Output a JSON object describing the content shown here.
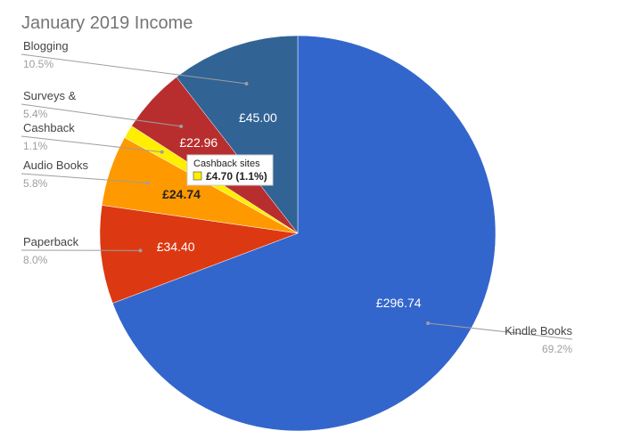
{
  "chart_data": {
    "type": "pie",
    "title": "January 2019 Income",
    "slices": [
      {
        "label": "Kindle Books",
        "value": 296.74,
        "value_label": "£296.74",
        "percent_label": "69.2%",
        "color": "#3366cc",
        "text_color": "#ffffff"
      },
      {
        "label": "Paperback",
        "value": 34.4,
        "value_label": "£34.40",
        "percent_label": "8.0%",
        "color": "#dc3912",
        "text_color": "#ffffff"
      },
      {
        "label": "Audio Books",
        "value": 24.74,
        "value_label": "£24.74",
        "percent_label": "5.8%",
        "color": "#ff9900",
        "text_color": "#222222"
      },
      {
        "label": "Cashback",
        "value": 4.7,
        "value_label": "",
        "percent_label": "1.1%",
        "color": "#ffee00",
        "text_color": "#222222"
      },
      {
        "label": "Surveys &",
        "value": 22.96,
        "value_label": "£22.96",
        "percent_label": "5.4%",
        "color": "#b82e2e",
        "text_color": "#ffffff"
      },
      {
        "label": "Blogging",
        "value": 45.0,
        "value_label": "£45.00",
        "percent_label": "10.5%",
        "color": "#316395",
        "text_color": "#ffffff"
      }
    ],
    "tooltip": {
      "title": "Cashback sites",
      "value": "£4.70 (1.1%)",
      "swatch_color": "#ffee00"
    }
  }
}
